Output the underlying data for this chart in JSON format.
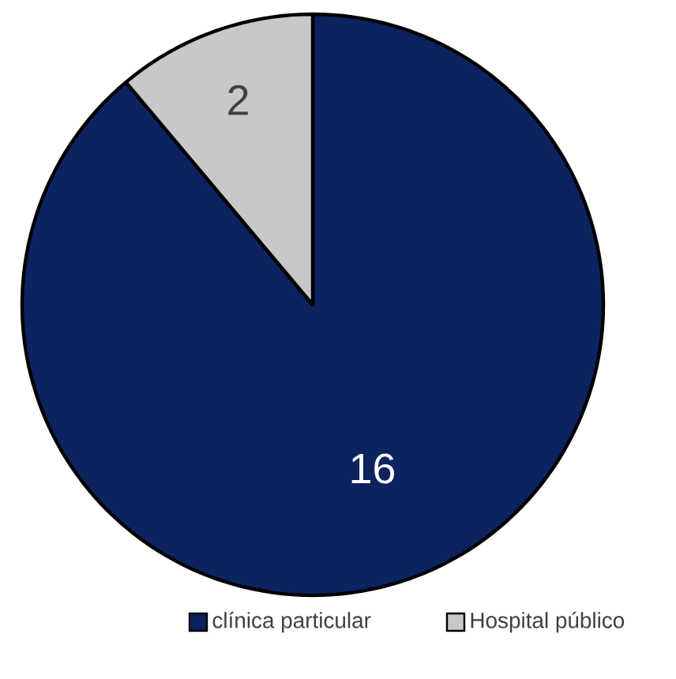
{
  "chart_data": {
    "type": "pie",
    "categories": [
      "clínica particular",
      "Hospital público"
    ],
    "values": [
      16,
      2
    ],
    "colors": [
      "#0c2360",
      "#c8c8c8"
    ],
    "data_labels": true,
    "legend": "bottom"
  }
}
